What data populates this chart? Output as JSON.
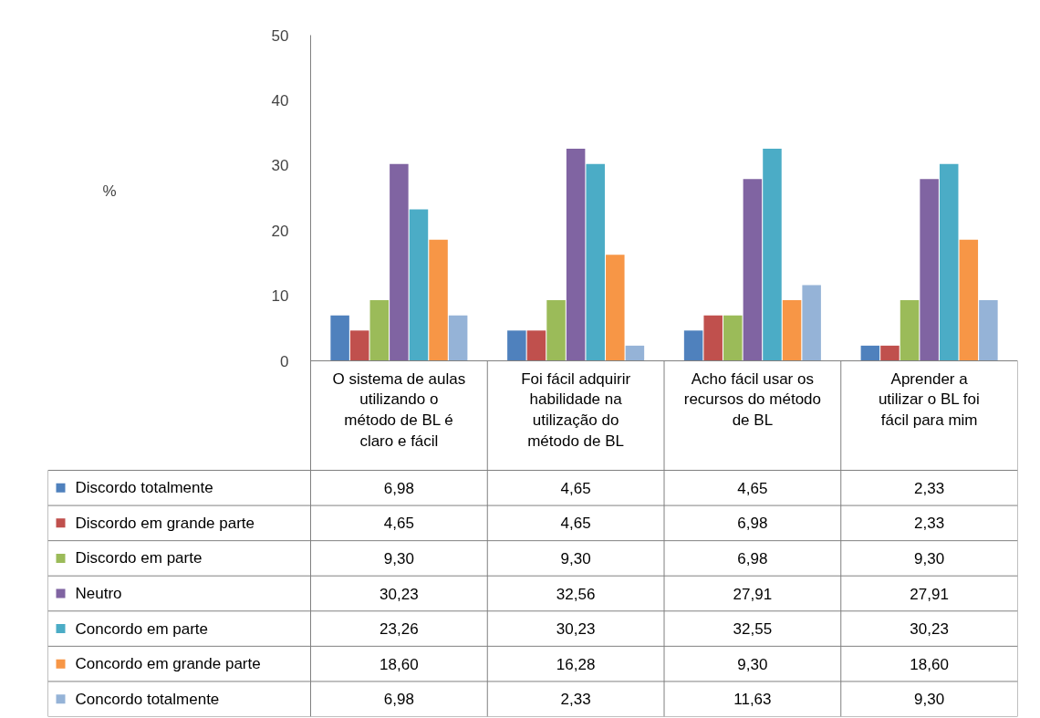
{
  "chart_data": {
    "type": "bar",
    "annotations": [
      "%"
    ],
    "categories": [
      "O sistema de aulas utilizando o método de BL é claro e fácil",
      "Foi fácil adquirir habilidade na utilização do método de BL",
      "Acho fácil usar os recursos do método de BL",
      "Aprender a utilizar o BL foi fácil para mim"
    ],
    "series": [
      {
        "name": "Discordo totalmente",
        "color": "#4f81bd",
        "values": [
          6.98,
          4.65,
          4.65,
          2.33
        ],
        "value_labels": [
          "6,98",
          "4,65",
          "4,65",
          "2,33"
        ]
      },
      {
        "name": "Discordo em grande parte",
        "color": "#c0504d",
        "values": [
          4.65,
          4.65,
          6.98,
          2.33
        ],
        "value_labels": [
          "4,65",
          "4,65",
          "6,98",
          "2,33"
        ]
      },
      {
        "name": "Discordo em parte",
        "color": "#9bbb59",
        "values": [
          9.3,
          9.3,
          6.98,
          9.3
        ],
        "value_labels": [
          "9,30",
          "9,30",
          "6,98",
          "9,30"
        ]
      },
      {
        "name": "Neutro",
        "color": "#8064a2",
        "values": [
          30.23,
          32.56,
          27.91,
          27.91
        ],
        "value_labels": [
          "30,23",
          "32,56",
          "27,91",
          "27,91"
        ]
      },
      {
        "name": "Concordo em parte",
        "color": "#4bacc6",
        "values": [
          23.26,
          30.23,
          32.55,
          30.23
        ],
        "value_labels": [
          "23,26",
          "30,23",
          "32,55",
          "30,23"
        ]
      },
      {
        "name": "Concordo em grande parte",
        "color": "#f79646",
        "values": [
          18.6,
          16.28,
          9.3,
          18.6
        ],
        "value_labels": [
          "18,60",
          "16,28",
          "9,30",
          "18,60"
        ]
      },
      {
        "name": "Concordo totalmente",
        "color": "#95b3d7",
        "values": [
          6.98,
          2.33,
          11.63,
          9.3
        ],
        "value_labels": [
          "6,98",
          "2,33",
          "11,63",
          "9,30"
        ]
      }
    ],
    "ylim": [
      0,
      50
    ],
    "yticks": [
      0,
      10,
      20,
      30,
      40,
      50
    ],
    "grid": false,
    "legend": "bottom"
  }
}
